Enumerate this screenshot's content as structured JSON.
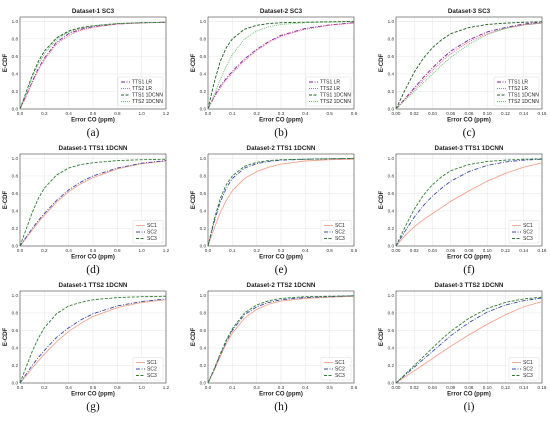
{
  "figure": {
    "panels": [
      {
        "title": "Dataset-1 SC3",
        "label": "(a)"
      },
      {
        "title": "Dataset-2 SC3",
        "label": "(b)"
      },
      {
        "title": "Dataset-3 SC3",
        "label": "(c)"
      },
      {
        "title": "Dataset-1 TTS1 1DCNN",
        "label": "(d)"
      },
      {
        "title": "Dataset-2 TTS1 1DCNN",
        "label": "(e)"
      },
      {
        "title": "Dataset-3 TTS1 1DCNN",
        "label": "(f)"
      },
      {
        "title": "Dataset-1 TTS2 1DCNN",
        "label": "(g)"
      },
      {
        "title": "Dataset-2 TTS2 1DCNN",
        "label": "(h)"
      },
      {
        "title": "Dataset-3 TTS2 1DCNN",
        "label": "(i)"
      }
    ]
  },
  "colors": {
    "purple": "#7b1fa2",
    "pink": "#f06292",
    "dark_green": "#1b5e20",
    "light_green": "#66bb6a",
    "salmon": "#f4a38f",
    "navy": "#3949ab",
    "green": "#2e7d32"
  },
  "chart_data": [
    {
      "type": "line",
      "title": "Dataset-1 SC3",
      "xlabel": "Error CO (ppm)",
      "ylabel": "E-CDF",
      "xlim": [
        0,
        1.2
      ],
      "ylim": [
        0,
        1.05
      ],
      "xticks": [
        "0.0",
        "0.2",
        "0.4",
        "0.6",
        "0.8",
        "1.0",
        "1.2"
      ],
      "yticks": [
        "0.0",
        "0.2",
        "0.4",
        "0.6",
        "0.8",
        "1.0"
      ],
      "grid": true,
      "legend": "bottom-right",
      "x": [
        0,
        0.05,
        0.1,
        0.15,
        0.2,
        0.3,
        0.4,
        0.5,
        0.6,
        0.8,
        1.0,
        1.2
      ],
      "series": [
        {
          "name": "TTS1 LR",
          "values": [
            0,
            0.15,
            0.31,
            0.46,
            0.58,
            0.76,
            0.86,
            0.91,
            0.94,
            0.97,
            0.985,
            0.99
          ]
        },
        {
          "name": "TTS2 LR",
          "values": [
            0,
            0.14,
            0.3,
            0.44,
            0.56,
            0.74,
            0.84,
            0.9,
            0.93,
            0.97,
            0.98,
            0.99
          ]
        },
        {
          "name": "TTS1 1DCNN",
          "values": [
            0,
            0.19,
            0.38,
            0.54,
            0.66,
            0.81,
            0.89,
            0.93,
            0.95,
            0.975,
            0.985,
            0.99
          ]
        },
        {
          "name": "TTS2 1DCNN",
          "values": [
            0,
            0.18,
            0.36,
            0.51,
            0.63,
            0.79,
            0.88,
            0.92,
            0.95,
            0.975,
            0.985,
            0.99
          ]
        }
      ]
    },
    {
      "type": "line",
      "title": "Dataset-2 SC3",
      "xlabel": "Error CO (ppm)",
      "ylabel": "E-CDF",
      "xlim": [
        0,
        0.6
      ],
      "ylim": [
        0,
        1.05
      ],
      "xticks": [
        "0.0",
        "0.1",
        "0.2",
        "0.3",
        "0.4",
        "0.5",
        "0.6"
      ],
      "yticks": [
        "0.0",
        "0.2",
        "0.4",
        "0.6",
        "0.8",
        "1.0"
      ],
      "grid": true,
      "legend": "bottom-right",
      "x": [
        0,
        0.025,
        0.05,
        0.075,
        0.1,
        0.15,
        0.2,
        0.25,
        0.3,
        0.4,
        0.5,
        0.6
      ],
      "series": [
        {
          "name": "TTS1 LR",
          "values": [
            0,
            0.14,
            0.26,
            0.35,
            0.43,
            0.57,
            0.68,
            0.77,
            0.84,
            0.92,
            0.96,
            0.985
          ]
        },
        {
          "name": "TTS2 LR",
          "values": [
            0,
            0.13,
            0.24,
            0.33,
            0.41,
            0.55,
            0.67,
            0.76,
            0.83,
            0.91,
            0.955,
            0.98
          ]
        },
        {
          "name": "TTS1 1DCNN",
          "values": [
            0,
            0.3,
            0.54,
            0.7,
            0.8,
            0.91,
            0.955,
            0.975,
            0.985,
            0.99,
            0.995,
            1.0
          ]
        },
        {
          "name": "TTS2 1DCNN",
          "values": [
            0,
            0.16,
            0.33,
            0.49,
            0.62,
            0.8,
            0.89,
            0.94,
            0.965,
            0.985,
            0.99,
            0.995
          ]
        }
      ]
    },
    {
      "type": "line",
      "title": "Dataset-3 SC3",
      "xlabel": "Error CO (ppm)",
      "ylabel": "E-CDF",
      "xlim": [
        0,
        0.16
      ],
      "ylim": [
        0,
        1.05
      ],
      "xticks": [
        "0.00",
        "0.02",
        "0.04",
        "0.06",
        "0.08",
        "0.10",
        "0.12",
        "0.14",
        "0.16"
      ],
      "yticks": [
        "0.0",
        "0.2",
        "0.4",
        "0.6",
        "0.8",
        "1.0"
      ],
      "grid": true,
      "legend": "bottom-right",
      "x": [
        0,
        0.01,
        0.02,
        0.03,
        0.04,
        0.05,
        0.06,
        0.08,
        0.1,
        0.12,
        0.14,
        0.16
      ],
      "series": [
        {
          "name": "TTS1 LR",
          "values": [
            0,
            0.12,
            0.24,
            0.36,
            0.47,
            0.57,
            0.66,
            0.79,
            0.88,
            0.93,
            0.97,
            0.99
          ]
        },
        {
          "name": "TTS2 LR",
          "values": [
            0,
            0.11,
            0.22,
            0.33,
            0.44,
            0.54,
            0.63,
            0.77,
            0.86,
            0.92,
            0.96,
            0.98
          ]
        },
        {
          "name": "TTS1 1DCNN",
          "values": [
            0,
            0.22,
            0.42,
            0.58,
            0.7,
            0.79,
            0.86,
            0.93,
            0.965,
            0.98,
            0.99,
            0.995
          ]
        },
        {
          "name": "TTS2 1DCNN",
          "values": [
            0,
            0.1,
            0.2,
            0.3,
            0.4,
            0.5,
            0.59,
            0.74,
            0.85,
            0.92,
            0.96,
            0.98
          ]
        }
      ]
    },
    {
      "type": "line",
      "title": "Dataset-1 TTS1 1DCNN",
      "xlabel": "Error CO (ppm)",
      "ylabel": "E-CDF",
      "xlim": [
        0,
        1.2
      ],
      "ylim": [
        0,
        1.05
      ],
      "xticks": [
        "0.0",
        "0.2",
        "0.4",
        "0.6",
        "0.8",
        "1.0",
        "1.2"
      ],
      "yticks": [
        "0.0",
        "0.2",
        "0.4",
        "0.6",
        "0.8",
        "1.0"
      ],
      "grid": true,
      "legend": "bottom-right",
      "x": [
        0,
        0.05,
        0.1,
        0.15,
        0.2,
        0.3,
        0.4,
        0.5,
        0.6,
        0.8,
        1.0,
        1.2
      ],
      "series": [
        {
          "name": "SC1",
          "values": [
            0,
            0.09,
            0.18,
            0.27,
            0.35,
            0.5,
            0.62,
            0.71,
            0.78,
            0.88,
            0.94,
            0.97
          ]
        },
        {
          "name": "SC2",
          "values": [
            0,
            0.1,
            0.2,
            0.29,
            0.37,
            0.52,
            0.64,
            0.73,
            0.8,
            0.89,
            0.945,
            0.975
          ]
        },
        {
          "name": "SC3",
          "values": [
            0,
            0.19,
            0.38,
            0.54,
            0.66,
            0.81,
            0.89,
            0.93,
            0.95,
            0.975,
            0.985,
            0.99
          ]
        }
      ]
    },
    {
      "type": "line",
      "title": "Dataset-2 TTS1 1DCNN",
      "xlabel": "Error CO (ppm)",
      "ylabel": "E-CDF",
      "xlim": [
        0,
        0.6
      ],
      "ylim": [
        0,
        1.05
      ],
      "xticks": [
        "0.0",
        "0.1",
        "0.2",
        "0.3",
        "0.4",
        "0.5",
        "0.6"
      ],
      "yticks": [
        "0.0",
        "0.2",
        "0.4",
        "0.6",
        "0.8",
        "1.0"
      ],
      "grid": true,
      "legend": "bottom-right",
      "x": [
        0,
        0.025,
        0.05,
        0.075,
        0.1,
        0.15,
        0.2,
        0.25,
        0.3,
        0.4,
        0.5,
        0.6
      ],
      "series": [
        {
          "name": "SC1",
          "values": [
            0,
            0.2,
            0.38,
            0.52,
            0.63,
            0.77,
            0.85,
            0.9,
            0.935,
            0.97,
            0.985,
            0.99
          ]
        },
        {
          "name": "SC2",
          "values": [
            0,
            0.27,
            0.5,
            0.66,
            0.77,
            0.89,
            0.94,
            0.965,
            0.98,
            0.99,
            0.995,
            1.0
          ]
        },
        {
          "name": "SC3",
          "values": [
            0,
            0.3,
            0.54,
            0.7,
            0.8,
            0.91,
            0.955,
            0.975,
            0.985,
            0.99,
            0.995,
            1.0
          ]
        }
      ]
    },
    {
      "type": "line",
      "title": "Dataset-3 TTS1 1DCNN",
      "xlabel": "Error CO (ppm)",
      "ylabel": "E-CDF",
      "xlim": [
        0,
        0.16
      ],
      "ylim": [
        0,
        1.05
      ],
      "xticks": [
        "0.00",
        "0.02",
        "0.04",
        "0.06",
        "0.08",
        "0.10",
        "0.12",
        "0.14",
        "0.16"
      ],
      "yticks": [
        "0.0",
        "0.2",
        "0.4",
        "0.6",
        "0.8",
        "1.0"
      ],
      "grid": true,
      "legend": "bottom-right",
      "x": [
        0,
        0.01,
        0.02,
        0.03,
        0.04,
        0.05,
        0.06,
        0.08,
        0.1,
        0.12,
        0.14,
        0.16
      ],
      "series": [
        {
          "name": "SC1",
          "values": [
            0,
            0.12,
            0.22,
            0.3,
            0.37,
            0.44,
            0.51,
            0.63,
            0.74,
            0.83,
            0.9,
            0.95
          ]
        },
        {
          "name": "SC2",
          "values": [
            0,
            0.17,
            0.33,
            0.46,
            0.57,
            0.66,
            0.74,
            0.85,
            0.92,
            0.96,
            0.98,
            0.99
          ]
        },
        {
          "name": "SC3",
          "values": [
            0,
            0.22,
            0.42,
            0.58,
            0.7,
            0.79,
            0.86,
            0.93,
            0.965,
            0.98,
            0.99,
            0.995
          ]
        }
      ]
    },
    {
      "type": "line",
      "title": "Dataset-1 TTS2 1DCNN",
      "xlabel": "Error CO (ppm)",
      "ylabel": "E-CDF",
      "xlim": [
        0,
        1.2
      ],
      "ylim": [
        0,
        1.05
      ],
      "xticks": [
        "0.0",
        "0.2",
        "0.4",
        "0.6",
        "0.8",
        "1.0",
        "1.2"
      ],
      "yticks": [
        "0.0",
        "0.2",
        "0.4",
        "0.6",
        "0.8",
        "1.0"
      ],
      "grid": true,
      "legend": "bottom-right",
      "x": [
        0,
        0.05,
        0.1,
        0.15,
        0.2,
        0.3,
        0.4,
        0.5,
        0.6,
        0.8,
        1.0,
        1.2
      ],
      "series": [
        {
          "name": "SC1",
          "values": [
            0,
            0.08,
            0.17,
            0.25,
            0.33,
            0.47,
            0.59,
            0.68,
            0.76,
            0.86,
            0.92,
            0.95
          ]
        },
        {
          "name": "SC2",
          "values": [
            0,
            0.1,
            0.2,
            0.29,
            0.37,
            0.52,
            0.63,
            0.72,
            0.79,
            0.88,
            0.93,
            0.96
          ]
        },
        {
          "name": "SC3",
          "values": [
            0,
            0.18,
            0.36,
            0.51,
            0.63,
            0.79,
            0.88,
            0.92,
            0.95,
            0.975,
            0.985,
            0.99
          ]
        }
      ]
    },
    {
      "type": "line",
      "title": "Dataset-2 TTS2 1DCNN",
      "xlabel": "Error CO (ppm)",
      "ylabel": "E-CDF",
      "xlim": [
        0,
        0.6
      ],
      "ylim": [
        0,
        1.05
      ],
      "xticks": [
        "0.0",
        "0.1",
        "0.2",
        "0.3",
        "0.4",
        "0.5",
        "0.6"
      ],
      "yticks": [
        "0.0",
        "0.2",
        "0.4",
        "0.6",
        "0.8",
        "1.0"
      ],
      "grid": true,
      "legend": "bottom-right",
      "x": [
        0,
        0.025,
        0.05,
        0.075,
        0.1,
        0.15,
        0.2,
        0.25,
        0.3,
        0.4,
        0.5,
        0.6
      ],
      "series": [
        {
          "name": "SC1",
          "values": [
            0,
            0.14,
            0.3,
            0.45,
            0.57,
            0.74,
            0.84,
            0.9,
            0.935,
            0.965,
            0.98,
            0.99
          ]
        },
        {
          "name": "SC2",
          "values": [
            0,
            0.15,
            0.32,
            0.47,
            0.6,
            0.78,
            0.87,
            0.92,
            0.95,
            0.975,
            0.985,
            0.995
          ]
        },
        {
          "name": "SC3",
          "values": [
            0,
            0.16,
            0.33,
            0.49,
            0.62,
            0.8,
            0.89,
            0.94,
            0.965,
            0.985,
            0.99,
            0.995
          ]
        }
      ]
    },
    {
      "type": "line",
      "title": "Dataset-3 TTS2 1DCNN",
      "xlabel": "Error CO (ppm)",
      "ylabel": "E-CDF",
      "xlim": [
        0,
        0.16
      ],
      "ylim": [
        0,
        1.05
      ],
      "xticks": [
        "0.00",
        "0.02",
        "0.04",
        "0.06",
        "0.08",
        "0.10",
        "0.12",
        "0.14",
        "0.16"
      ],
      "yticks": [
        "0.0",
        "0.2",
        "0.4",
        "0.6",
        "0.8",
        "1.0"
      ],
      "grid": true,
      "legend": "bottom-right",
      "x": [
        0,
        0.01,
        0.02,
        0.03,
        0.04,
        0.05,
        0.06,
        0.08,
        0.1,
        0.12,
        0.14,
        0.16
      ],
      "series": [
        {
          "name": "SC1",
          "values": [
            0,
            0.07,
            0.14,
            0.21,
            0.28,
            0.35,
            0.42,
            0.55,
            0.67,
            0.78,
            0.87,
            0.93
          ]
        },
        {
          "name": "SC2",
          "values": [
            0,
            0.09,
            0.18,
            0.27,
            0.36,
            0.45,
            0.54,
            0.69,
            0.81,
            0.89,
            0.94,
            0.97
          ]
        },
        {
          "name": "SC3",
          "values": [
            0,
            0.1,
            0.2,
            0.3,
            0.4,
            0.5,
            0.59,
            0.74,
            0.85,
            0.92,
            0.96,
            0.98
          ]
        }
      ]
    }
  ]
}
